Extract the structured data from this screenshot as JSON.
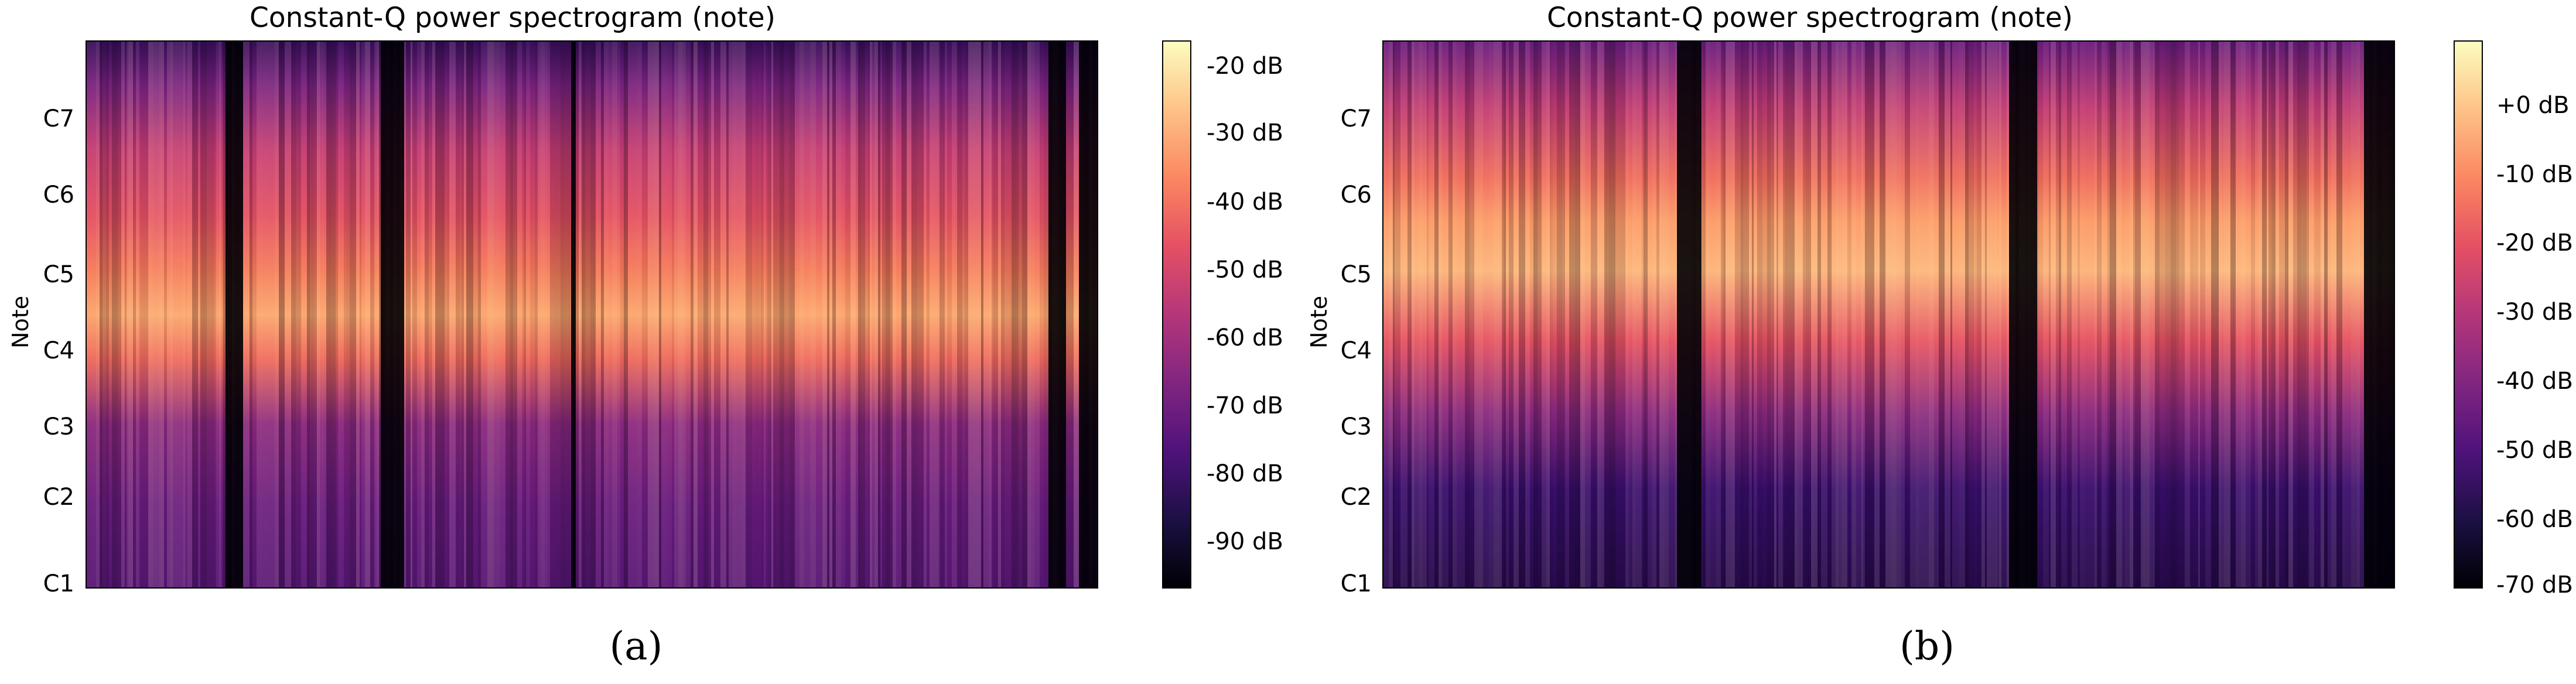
{
  "chart_data": [
    {
      "type": "heatmap",
      "title": "Constant-Q power spectrogram (note)",
      "ylabel": "Note",
      "xlabel": "",
      "yticks": [
        "C1",
        "C2",
        "C3",
        "C4",
        "C5",
        "C6",
        "C7"
      ],
      "colorbar": {
        "ticks": [
          "-20 dB",
          "-30 dB",
          "-40 dB",
          "-50 dB",
          "-60 dB",
          "-70 dB",
          "-80 dB",
          "-90 dB"
        ],
        "range": [
          -98,
          -15
        ]
      },
      "colormap": "magma",
      "caption": "(a)"
    },
    {
      "type": "heatmap",
      "title": "Constant-Q power spectrogram (note)",
      "ylabel": "Note",
      "xlabel": "",
      "yticks": [
        "C1",
        "C2",
        "C3",
        "C4",
        "C5",
        "C6",
        "C7"
      ],
      "colorbar": {
        "ticks": [
          "+0 dB",
          "-10 dB",
          "-20 dB",
          "-30 dB",
          "-40 dB",
          "-50 dB",
          "-60 dB",
          "-70 dB"
        ],
        "range": [
          -73,
          10
        ]
      },
      "colormap": "magma",
      "caption": "(b)"
    }
  ],
  "colors": {
    "magma_stops": [
      "#000004",
      "#1c1044",
      "#4f127b",
      "#812581",
      "#b5367a",
      "#e55064",
      "#fb8761",
      "#fec287",
      "#fcfdbf"
    ]
  }
}
